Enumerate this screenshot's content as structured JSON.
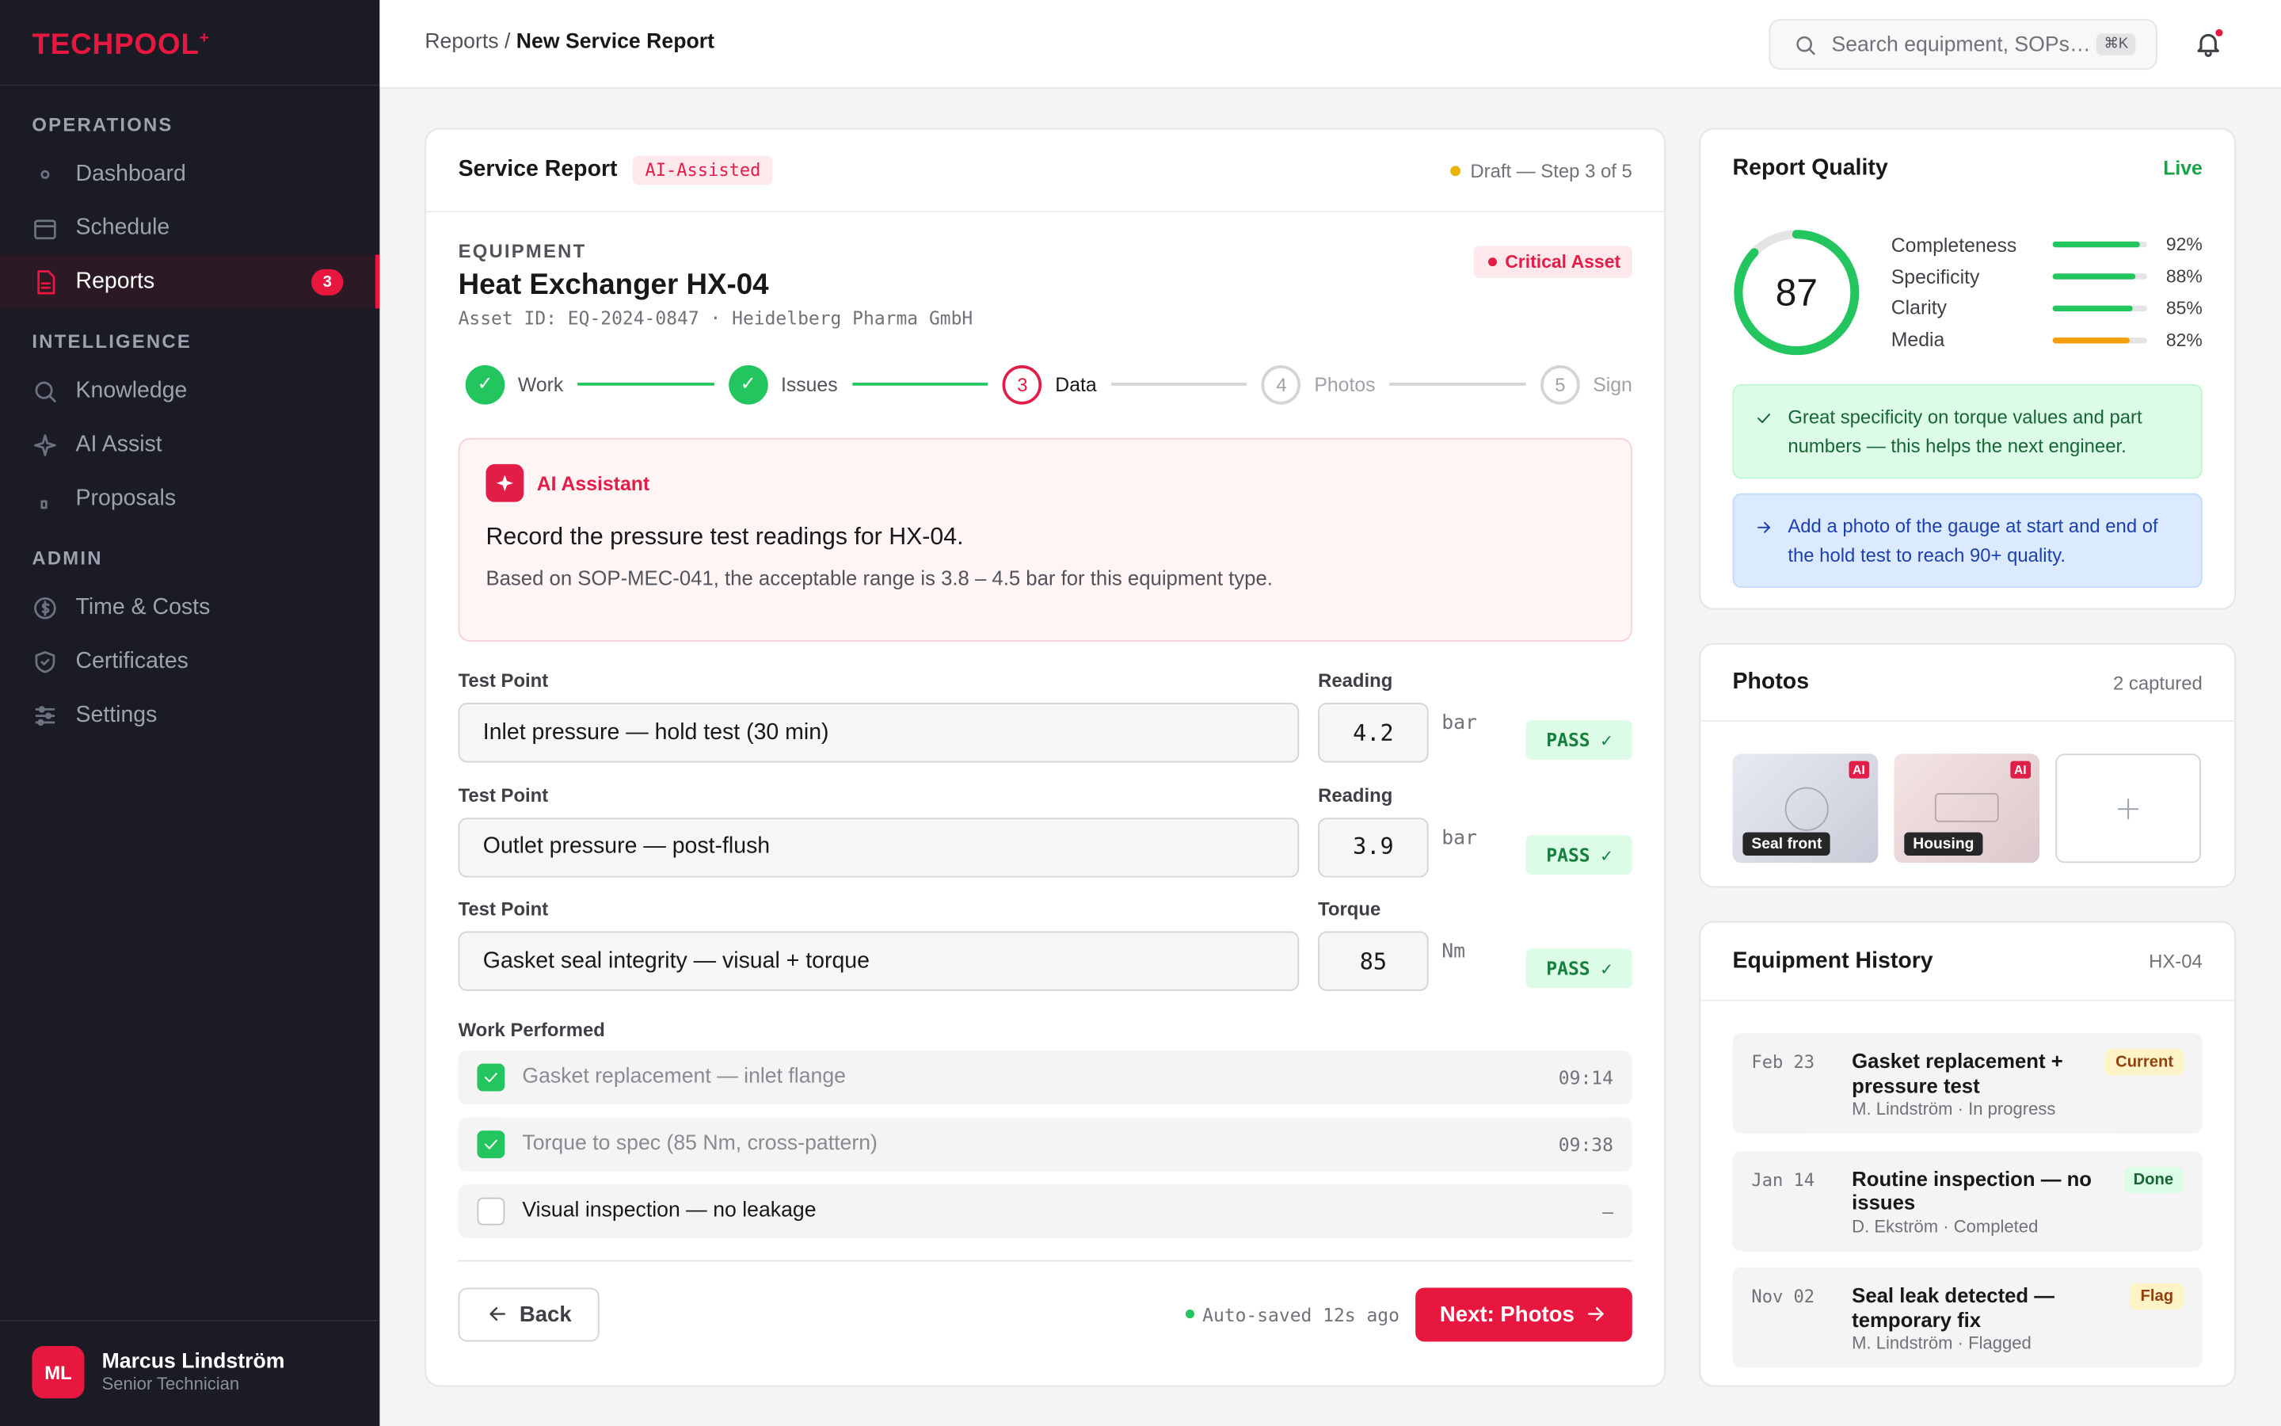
{
  "sidebar": {
    "logo": "TECHPOOL",
    "logo_mark": "+",
    "sections": [
      {
        "title": "OPERATIONS",
        "items": [
          {
            "label": "Dashboard"
          },
          {
            "label": "Schedule"
          },
          {
            "label": "Reports",
            "badge": 3,
            "active": true
          }
        ]
      },
      {
        "title": "INTELLIGENCE",
        "items": [
          {
            "label": "Knowledge"
          },
          {
            "label": "AI Assist"
          },
          {
            "label": "Proposals"
          }
        ]
      },
      {
        "title": "ADMIN",
        "items": [
          {
            "label": "Time & Costs"
          },
          {
            "label": "Certificates"
          },
          {
            "label": "Settings"
          }
        ]
      }
    ],
    "user": {
      "initials": "ML",
      "name": "Marcus Lindström",
      "role": "Senior Technician"
    }
  },
  "topbar": {
    "breadcrumb_parent": "Reports",
    "breadcrumb_separator": "/",
    "breadcrumb_current": "New Service Report",
    "search_placeholder": "Search equipment, SOPs…",
    "shortcut": "⌘K"
  },
  "report": {
    "title": "Service Report",
    "tag": "AI-Assisted",
    "status": "Draft — Step 3 of 5",
    "equipment_label": "EQUIPMENT",
    "equipment_name": "Heat Exchanger HX-04",
    "asset_line": "Asset ID: EQ-2024-0847 · Heidelberg Pharma GmbH",
    "criticality": "Critical Asset",
    "steps": [
      {
        "marker": "✓",
        "label": "Work",
        "state": "done"
      },
      {
        "marker": "✓",
        "label": "Issues",
        "state": "done"
      },
      {
        "marker": 3,
        "label": "Data",
        "state": "current"
      },
      {
        "marker": 4,
        "label": "Photos",
        "state": "todo"
      },
      {
        "marker": 5,
        "label": "Sign",
        "state": "todo"
      }
    ],
    "assistant": {
      "name": "AI Assistant",
      "prompt": "Record the pressure test readings for HX-04.",
      "detail": "Based on SOP-MEC-041, the acceptable range is 3.8 – 4.5 bar for this equipment type."
    },
    "readings": [
      {
        "point_label": "Test Point",
        "point": "Inlet pressure — hold test (30 min)",
        "reading_label": "Reading",
        "reading": 4.2,
        "unit": "bar",
        "status": "PASS ✓"
      },
      {
        "point_label": "Test Point",
        "point": "Outlet pressure — post-flush",
        "reading_label": "Reading",
        "reading": 3.9,
        "unit": "bar",
        "status": "PASS ✓"
      },
      {
        "point_label": "Test Point",
        "point": "Gasket seal integrity — visual + torque",
        "reading_label": "Torque",
        "reading": 85,
        "unit": "Nm",
        "status": "PASS ✓"
      }
    ],
    "work_title": "Work Performed",
    "work": [
      {
        "text": "Gasket replacement — inlet flange",
        "checked": true,
        "time": "09:14"
      },
      {
        "text": "Torque to spec (85 Nm, cross-pattern)",
        "checked": true,
        "time": "09:38"
      },
      {
        "text": "Visual inspection — no leakage",
        "checked": false,
        "time": "–"
      }
    ],
    "back": "Back",
    "autosave": "Auto-saved 12s ago",
    "next": "Next: Photos"
  },
  "quality": {
    "title": "Report Quality",
    "status": "Live",
    "score": 87,
    "metrics": [
      {
        "name": "Completeness",
        "value": 92,
        "label": "92%",
        "color": "#22c55e"
      },
      {
        "name": "Specificity",
        "value": 88,
        "label": "88%",
        "color": "#22c55e"
      },
      {
        "name": "Clarity",
        "value": 85,
        "label": "85%",
        "color": "#22c55e"
      },
      {
        "name": "Media",
        "value": 82,
        "label": "82%",
        "color": "#f59e0b"
      }
    ],
    "notes": [
      {
        "kind": "success",
        "text": "Great specificity on torque values and part numbers — this helps the next engineer."
      },
      {
        "kind": "info",
        "text": "Add a photo of the gauge at start and end of the hold test to reach 90+ quality."
      }
    ]
  },
  "photos": {
    "title": "Photos",
    "count": "2 captured",
    "items": [
      {
        "label": "Seal front",
        "badge": "AI"
      },
      {
        "label": "Housing",
        "badge": "AI"
      }
    ]
  },
  "history": {
    "title": "Equipment History",
    "subtitle": "HX-04",
    "entries": [
      {
        "date": "Feb 23",
        "title": "Gasket replacement + pressure test",
        "meta": "M. Lindström · In progress",
        "tag": "Current",
        "tag_style": "warning"
      },
      {
        "date": "Jan 14",
        "title": "Routine inspection — no issues",
        "meta": "D. Ekström · Completed",
        "tag": "Done",
        "tag_style": "success"
      },
      {
        "date": "Nov 02",
        "title": "Seal leak detected — temporary fix",
        "meta": "M. Lindström · Flagged",
        "tag": "Flag",
        "tag_style": "warning"
      }
    ]
  }
}
